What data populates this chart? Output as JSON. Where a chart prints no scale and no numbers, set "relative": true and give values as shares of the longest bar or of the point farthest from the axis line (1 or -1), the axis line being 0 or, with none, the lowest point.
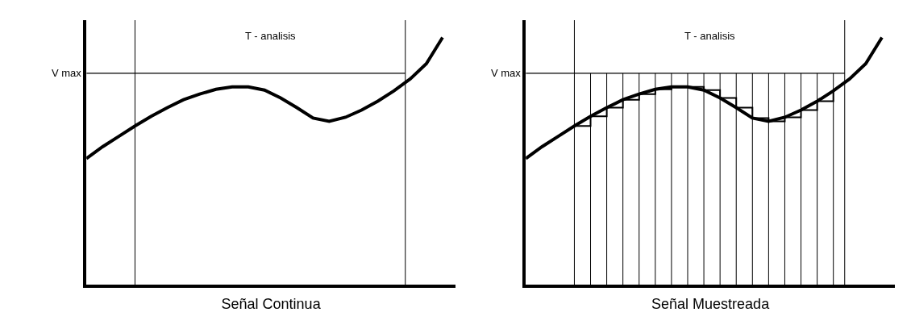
{
  "chart_data": [
    {
      "type": "line",
      "relative": true,
      "xlabel": "Señal Continua",
      "categories": [
        null,
        null,
        null,
        null,
        null,
        null,
        null,
        null,
        null,
        null,
        null,
        null,
        null,
        null,
        null,
        null,
        null,
        null,
        null,
        null,
        null,
        null,
        null
      ],
      "series": [
        {
          "color": "#000000",
          "values": [
            0.51,
            0.558,
            0.6,
            0.642,
            0.681,
            0.716,
            0.748,
            0.771,
            0.79,
            0.8,
            0.8,
            0.787,
            0.755,
            0.716,
            0.674,
            0.661,
            0.677,
            0.706,
            0.742,
            0.784,
            0.832,
            0.894,
            1.0
          ]
        }
      ],
      "ref_lines": [
        {
          "axis": "y",
          "value": 0.855,
          "label": "V max"
        }
      ],
      "annotations": [
        "T - analisis"
      ]
    },
    {
      "type": "line",
      "relative": true,
      "xlabel": "Señal Muestreada",
      "grid": "x",
      "categories": [
        null,
        null,
        null,
        null,
        null,
        null,
        null,
        null,
        null,
        null,
        null,
        null,
        null,
        null,
        null,
        null,
        null,
        null,
        null,
        null,
        null,
        null,
        null
      ],
      "series": [
        {
          "color": "#000000",
          "values": [
            0.51,
            0.558,
            0.6,
            0.642,
            0.681,
            0.716,
            0.748,
            0.771,
            0.79,
            0.8,
            0.8,
            0.787,
            0.755,
            0.716,
            0.674,
            0.661,
            0.677,
            0.706,
            0.742,
            0.784,
            0.832,
            0.894,
            1.0
          ]
        },
        {
          "type": "step",
          "color": "#000000",
          "values": [
            null,
            null,
            null,
            0.642,
            0.681,
            0.716,
            0.748,
            0.771,
            0.79,
            0.8,
            0.8,
            0.787,
            0.755,
            0.716,
            0.674,
            0.661,
            0.677,
            0.706,
            0.742,
            0.784,
            null,
            null,
            null
          ]
        }
      ],
      "ref_lines": [
        {
          "axis": "y",
          "value": 0.855,
          "label": "V max"
        }
      ],
      "annotations": [
        "T - analisis"
      ]
    }
  ]
}
